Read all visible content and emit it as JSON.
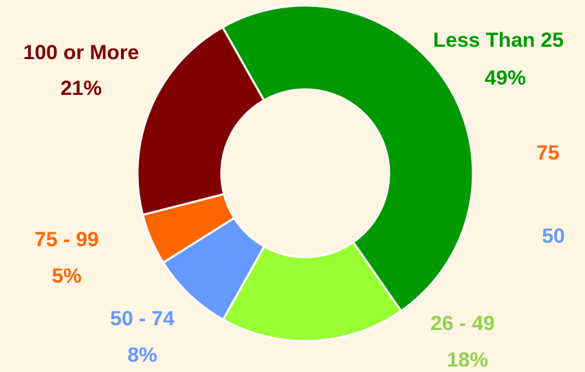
{
  "chart_data": {
    "type": "donut",
    "categories": [
      "Less Than 25",
      "26 - 49",
      "50 - 74",
      "75 - 99",
      "100 or More"
    ],
    "values": [
      49,
      18,
      8,
      5,
      21
    ],
    "value_labels": [
      "49%",
      "18%",
      "8%",
      "5%",
      "21%"
    ],
    "colors": [
      "#009900",
      "#99ff33",
      "#6699ff",
      "#ff6600",
      "#800000"
    ],
    "label_colors": [
      "#009900",
      "#92d050",
      "#6699ff",
      "#ff6600",
      "#800000"
    ],
    "clipped_labels": [
      {
        "text": "75",
        "color": "#ff6600"
      },
      {
        "text": "50",
        "color": "#6699ff"
      }
    ]
  }
}
